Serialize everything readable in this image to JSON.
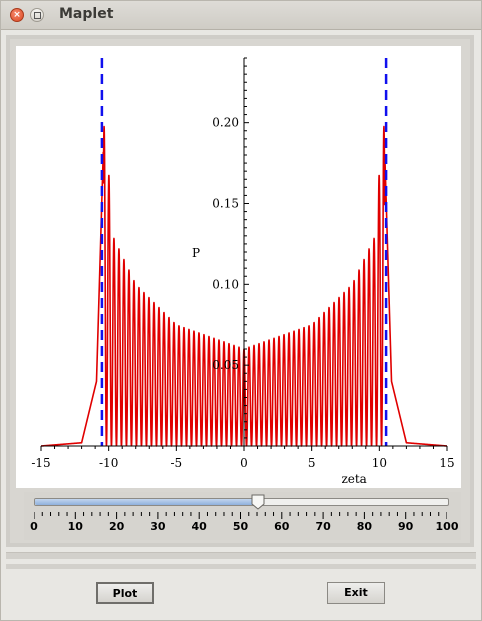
{
  "window": {
    "title": "Maplet"
  },
  "plot": {
    "x_label": "zeta",
    "y_label": "P",
    "x_ticks": [
      "-15",
      "-10",
      "-5",
      "0",
      "5",
      "10",
      "15"
    ],
    "y_ticks": [
      "0.05",
      "0.10",
      "0.15",
      "0.20"
    ],
    "curve_color": "#e00000",
    "dashed_color": "#1010ee"
  },
  "chart_data": {
    "type": "line",
    "xlabel": "zeta",
    "ylabel": "P",
    "xlim": [
      -15,
      15
    ],
    "ylim": [
      0,
      0.24
    ],
    "series": [
      {
        "color": "#e00000",
        "envelope_points": [
          [
            -15,
            0
          ],
          [
            -12,
            0.002
          ],
          [
            -10.9,
            0.04
          ],
          [
            -10.3,
            0.21
          ],
          [
            -9.7,
            0.13
          ],
          [
            -8,
            0.1
          ],
          [
            -5,
            0.075
          ],
          [
            0,
            0.06
          ],
          [
            5,
            0.075
          ],
          [
            8,
            0.1
          ],
          [
            9.7,
            0.13
          ],
          [
            10.3,
            0.21
          ],
          [
            10.9,
            0.04
          ],
          [
            12,
            0.002
          ],
          [
            15,
            0
          ]
        ]
      }
    ],
    "vertical_lines": [
      {
        "x": -10.5,
        "style": "dashed",
        "color": "#1010ee"
      },
      {
        "x": 10.5,
        "style": "dashed",
        "color": "#1010ee"
      }
    ]
  },
  "slider": {
    "value": 54,
    "min": 0,
    "max": 100,
    "labels": [
      "0",
      "10",
      "20",
      "30",
      "40",
      "50",
      "60",
      "70",
      "80",
      "90",
      "100"
    ]
  },
  "buttons": {
    "plot_label": "Plot",
    "exit_label": "Exit"
  }
}
